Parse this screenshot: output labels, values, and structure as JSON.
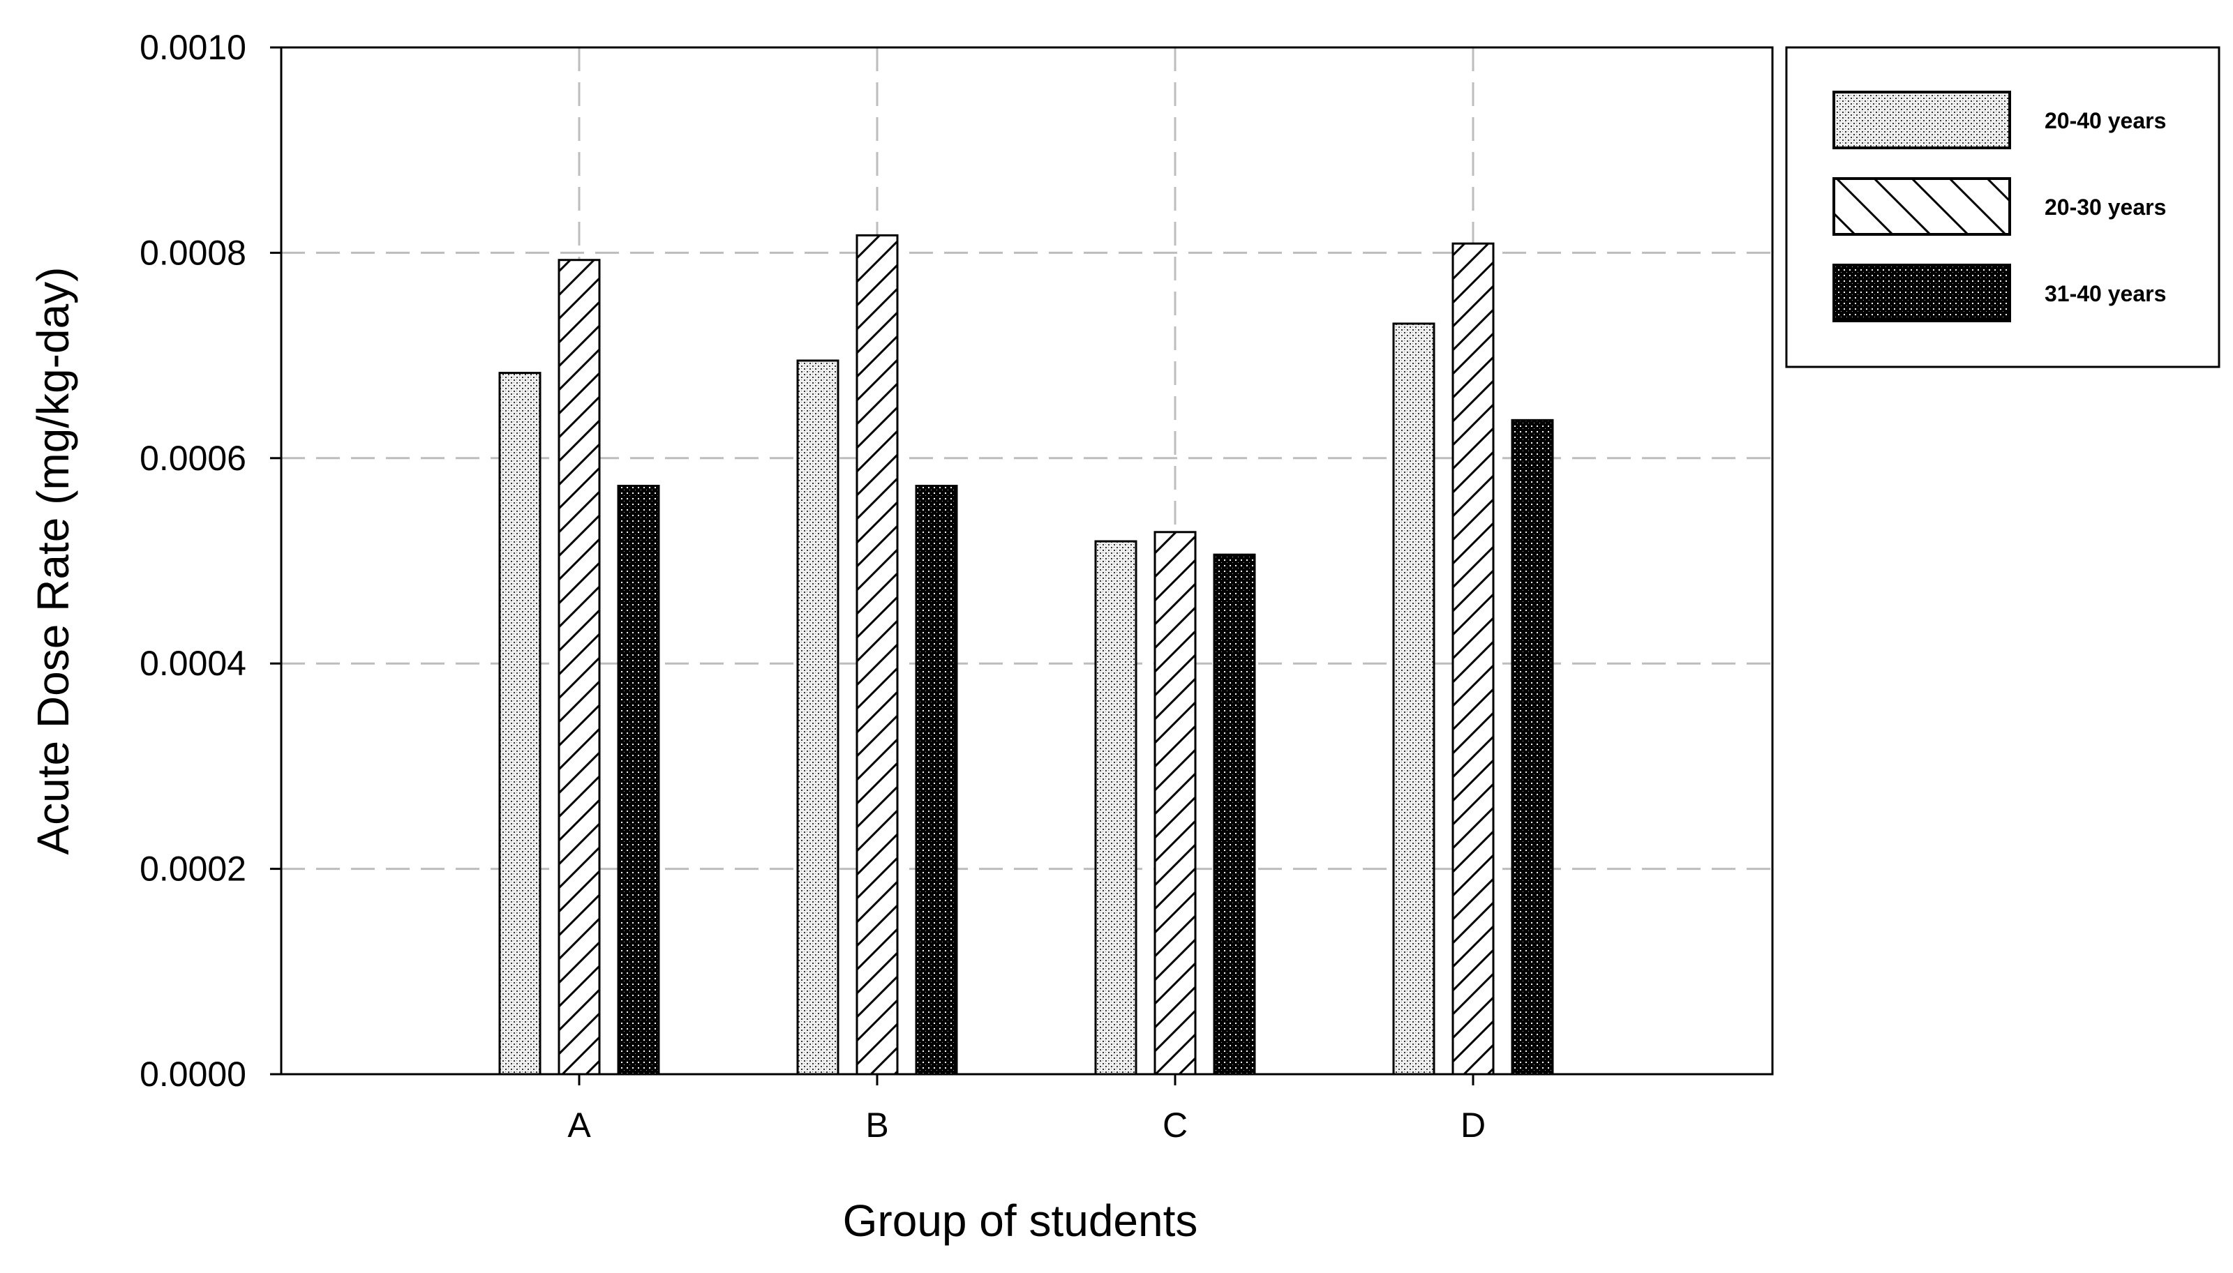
{
  "chart_data": {
    "type": "bar",
    "title": "",
    "xlabel": "Group of students",
    "ylabel": "Acute Dose Rate (mg/kg-day)",
    "categories": [
      "A",
      "B",
      "C",
      "D"
    ],
    "ylim": [
      0,
      0.001
    ],
    "yticks": [
      "0.0000",
      "0.0002",
      "0.0004",
      "0.0006",
      "0.0008",
      "0.0010"
    ],
    "ytick_values": [
      0,
      0.0002,
      0.0004,
      0.0006,
      0.0008,
      0.001
    ],
    "grid": true,
    "legend_position": "top-right, outside plot",
    "series": [
      {
        "name": "20-40 years",
        "pattern": "fine-stipple",
        "values": [
          0.000683,
          0.000695,
          0.000519,
          0.000731
        ]
      },
      {
        "name": "20-30 years",
        "pattern": "diagonal-hatch",
        "values": [
          0.000793,
          0.000817,
          0.000528,
          0.000809
        ]
      },
      {
        "name": "31-40 years",
        "pattern": "dark-dots",
        "values": [
          0.000573,
          0.000573,
          0.000506,
          0.000637
        ]
      }
    ]
  }
}
